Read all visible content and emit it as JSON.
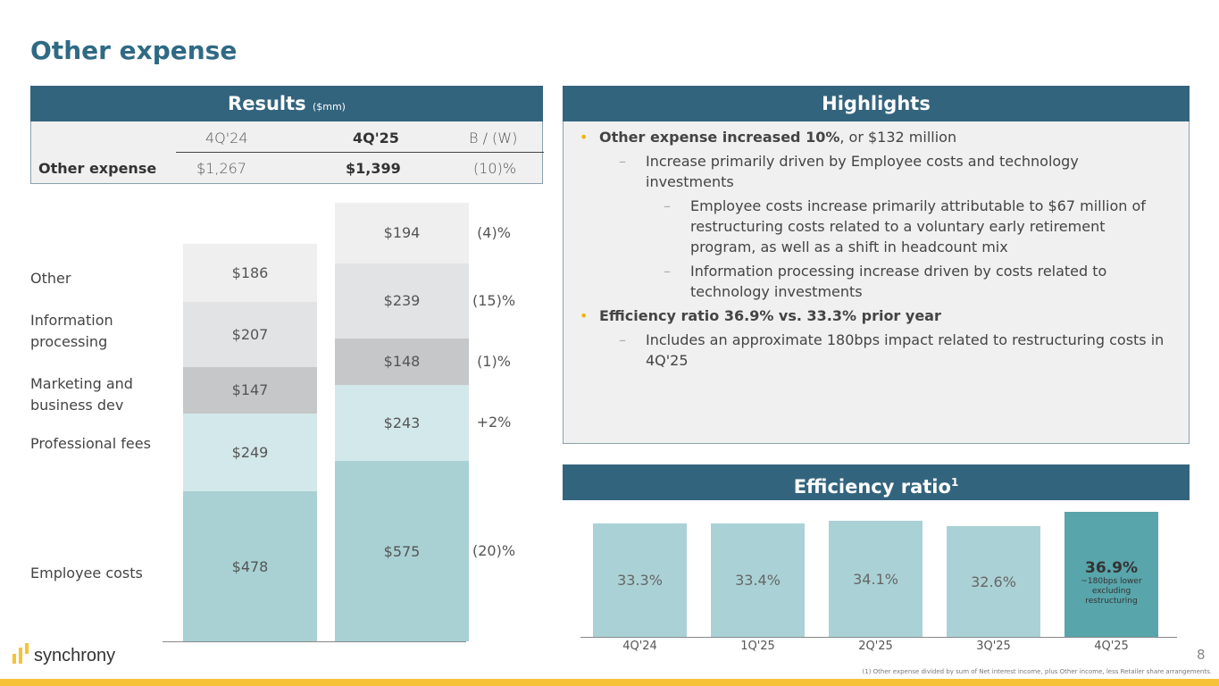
{
  "title": "Other expense",
  "results": {
    "header": "Results",
    "unit": "($mm)",
    "columns": [
      "4Q'24",
      "4Q'25",
      "B / (W)"
    ],
    "row_label": "Other expense",
    "values": [
      "$1,267",
      "$1,399",
      "(10)%"
    ]
  },
  "highlights": {
    "header": "Highlights",
    "items": [
      {
        "level": 1,
        "bold": "Other expense increased 10%",
        "text": ", or $132 million"
      },
      {
        "level": 2,
        "text": "Increase primarily driven by Employee costs and technology investments"
      },
      {
        "level": 3,
        "text": "Employee costs increase primarily attributable to $67 million of restructuring costs related to a voluntary early retirement program, as well as a shift in headcount mix"
      },
      {
        "level": 3,
        "text": "Information processing increase driven by costs related to technology investments"
      },
      {
        "level": 1,
        "bold": "Efficiency ratio 36.9% vs. 33.3% prior year",
        "text": ""
      },
      {
        "level": 2,
        "text": "Includes an approximate 180bps impact related to restructuring costs in 4Q'25"
      }
    ]
  },
  "chart_data": [
    {
      "type": "bar",
      "stacked": true,
      "categories": [
        "4Q'24",
        "4Q'25"
      ],
      "series": [
        {
          "name": "Employee costs",
          "values": [
            478,
            575
          ],
          "labels": [
            "$478",
            "$575"
          ],
          "change": "(20)%",
          "color": "#a9d1d4"
        },
        {
          "name": "Professional fees",
          "values": [
            249,
            243
          ],
          "labels": [
            "$249",
            "$243"
          ],
          "change": "+2%",
          "color": "#d3e8ea"
        },
        {
          "name": "Marketing and business dev",
          "values": [
            147,
            148
          ],
          "labels": [
            "$147",
            "$148"
          ],
          "change": "(1)%",
          "color": "#c6c7c8"
        },
        {
          "name": "Information processing",
          "values": [
            207,
            239
          ],
          "labels": [
            "$207",
            "$239"
          ],
          "change": "(15)%",
          "color": "#e2e3e5"
        },
        {
          "name": "Other",
          "values": [
            186,
            194
          ],
          "labels": [
            "$186",
            "$194"
          ],
          "change": "(4)%",
          "color": "#efefef"
        }
      ]
    },
    {
      "type": "bar",
      "title": "Efficiency ratio",
      "title_sup": "1",
      "categories": [
        "4Q'24",
        "1Q'25",
        "2Q'25",
        "3Q'25",
        "4Q'25"
      ],
      "values": [
        33.3,
        33.4,
        34.1,
        32.6,
        36.9
      ],
      "labels": [
        "33.3%",
        "33.4%",
        "34.1%",
        "32.6%",
        "36.9%"
      ],
      "note": "~180bps lower excluding restructuring",
      "colors": {
        "default": "#aad2d6",
        "highlight": "#58a5ab"
      }
    }
  ],
  "footnote": "(1) Other expense divided by sum of Net interest income, plus Other income, less Retailer share arrangements.",
  "page_number": "8",
  "logo": "synchrony",
  "colors": {
    "title": "#2f6a85",
    "header": "#33647e",
    "accent": "#f6c338"
  }
}
